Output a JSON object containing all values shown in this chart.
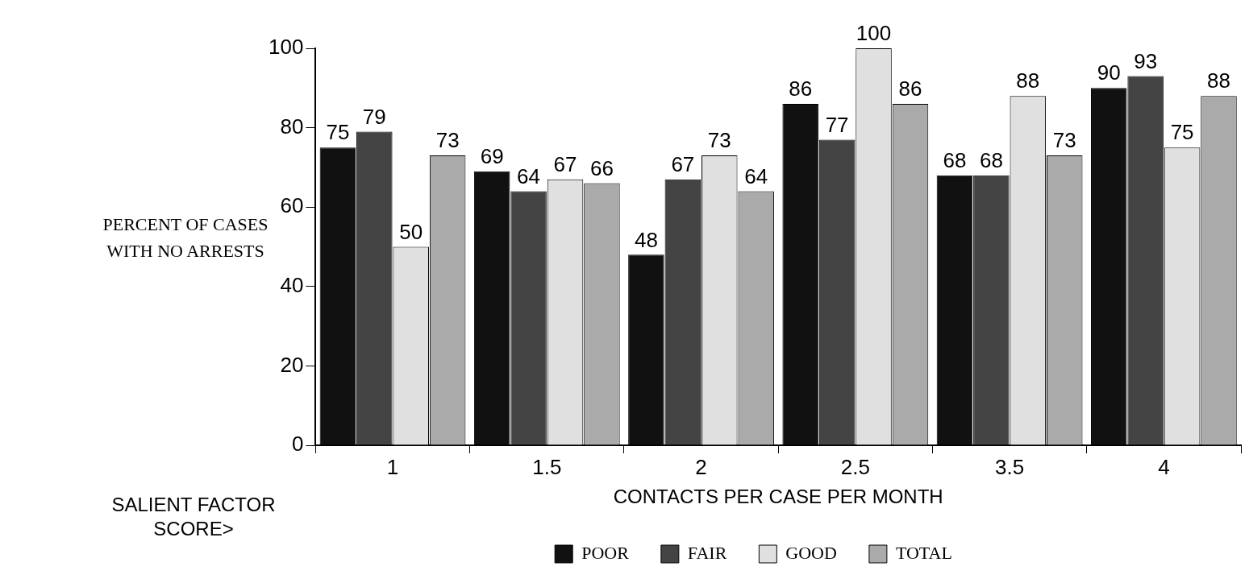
{
  "chart_data": {
    "type": "bar",
    "xlabel": "CONTACTS PER CASE PER MONTH",
    "ylabel": "PERCENT OF CASES WITH NO ARRESTS",
    "legend_title": "SALIENT FACTOR SCORE>",
    "categories": [
      "1",
      "1.5",
      "2",
      "2.5",
      "3.5",
      "4"
    ],
    "series": [
      {
        "name": "POOR",
        "color": "#111111",
        "values": [
          75,
          69,
          48,
          86,
          68,
          90
        ]
      },
      {
        "name": "FAIR",
        "color": "#444444",
        "values": [
          79,
          64,
          67,
          77,
          68,
          93
        ]
      },
      {
        "name": "GOOD",
        "color": "#e0e0e0",
        "values": [
          50,
          67,
          73,
          100,
          88,
          75
        ]
      },
      {
        "name": "TOTAL",
        "color": "#aaaaaa",
        "values": [
          73,
          66,
          64,
          86,
          73,
          88
        ]
      }
    ],
    "ylim": [
      0,
      100
    ],
    "yticks": [
      0,
      20,
      40,
      60,
      80,
      100
    ],
    "grid": false,
    "legend": "bottom",
    "data_labels": true
  }
}
